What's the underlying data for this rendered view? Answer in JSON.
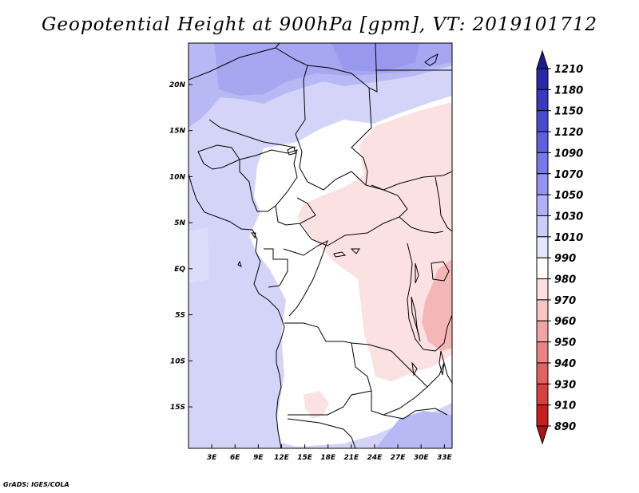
{
  "title": "Geopotential Height at 900hPa [gpm], VT: 2019101712",
  "credit": "GrADS: IGES/COLA",
  "map": {
    "lat_labels": [
      "20N",
      "15N",
      "10N",
      "5N",
      "EQ",
      "5S",
      "10S",
      "15S"
    ],
    "lon_labels": [
      "3E",
      "6E",
      "9E",
      "12E",
      "15E",
      "18E",
      "21E",
      "24E",
      "27E",
      "30E",
      "33E"
    ],
    "lat_range": [
      -19.5,
      24.5
    ],
    "lon_range": [
      0,
      34
    ]
  },
  "colorbar": {
    "labels": [
      "1210",
      "1180",
      "1150",
      "1120",
      "1090",
      "1070",
      "1050",
      "1030",
      "1010",
      "990",
      "980",
      "970",
      "960",
      "950",
      "940",
      "930",
      "910",
      "890"
    ],
    "colors": [
      "#1c1c8c",
      "#2828a8",
      "#3838c0",
      "#4a4ad0",
      "#5e5ee0",
      "#7878ec",
      "#9494f2",
      "#b0b0f6",
      "#cccbf9",
      "#e6e6fc",
      "#ffffff",
      "#fde0e0",
      "#f9c4c4",
      "#f2a4a4",
      "#ea8484",
      "#e26262",
      "#d84040",
      "#c81e1e",
      "#ac1414"
    ]
  },
  "colors": {
    "land_border": "#000000",
    "field_light_blue": "#d4d4f9",
    "field_blue": "#b8b8f5",
    "field_mid_blue": "#a6a6f1",
    "field_deep_blue": "#9898ee",
    "field_white": "#ffffff",
    "field_pink": "#fbe1e1",
    "field_red": "#f4b6b6"
  }
}
